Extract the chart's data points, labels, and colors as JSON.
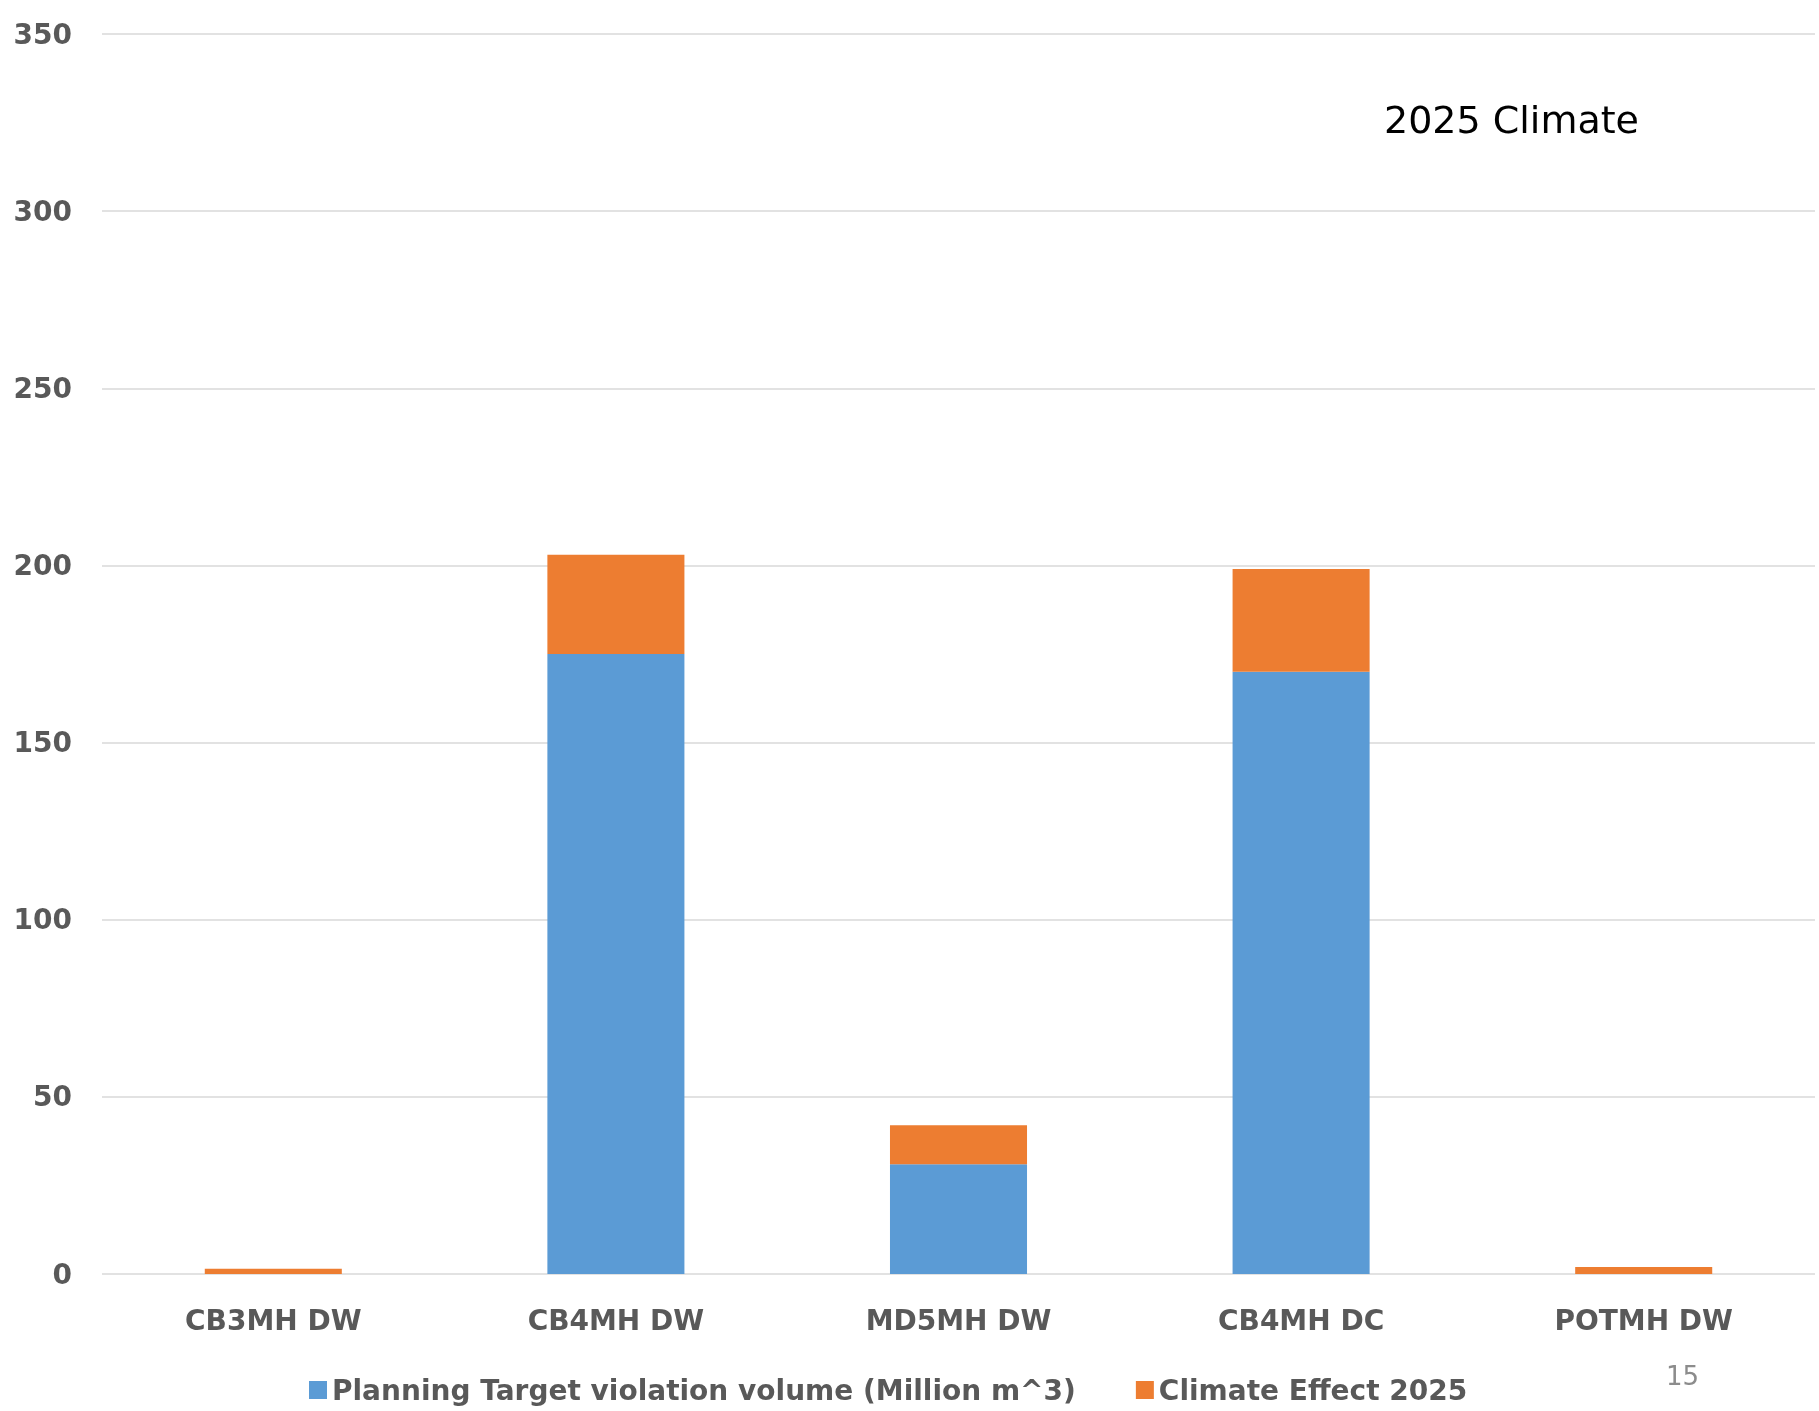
{
  "chart_data": {
    "type": "bar",
    "title": "2025 Climate",
    "categories": [
      "CB3MH DW",
      "CB4MH DW",
      "MD5MH DW",
      "CB4MH DC",
      "POTMH DW"
    ],
    "series": [
      {
        "name": "Planning Target violation volume (Million m^3)",
        "color": "#5b9bd5",
        "values": [
          null,
          175,
          31,
          170,
          null
        ]
      },
      {
        "name": "Climate Effect 2025",
        "color": "#ed7d31",
        "values": [
          1.5,
          28,
          11,
          29,
          2
        ]
      }
    ],
    "stacked": true,
    "ylim": [
      0,
      350
    ],
    "yticks": [
      0,
      50,
      100,
      150,
      200,
      250,
      300,
      350
    ],
    "grid": "y",
    "legend": "bottom",
    "annotations": [
      "15"
    ]
  }
}
